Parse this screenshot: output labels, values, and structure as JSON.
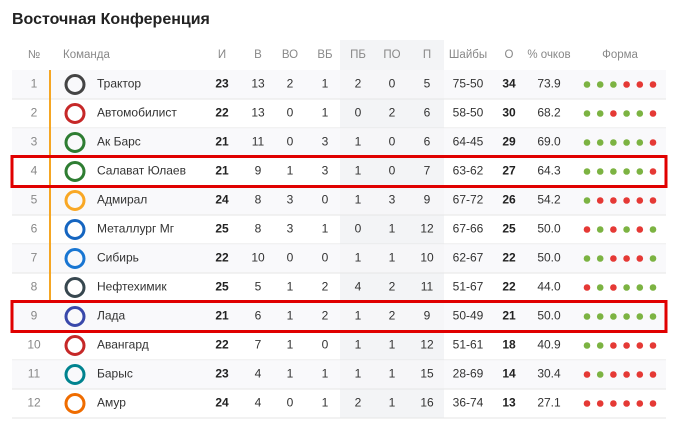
{
  "header": {
    "title": "Восточная Конференция"
  },
  "table": {
    "columns": [
      "№",
      "Команда",
      "И",
      "В",
      "ВО",
      "ВБ",
      "ПБ",
      "ПО",
      "П",
      "Шайбы",
      "О",
      "% очков",
      "Форма"
    ],
    "rows": [
      {
        "cells": [
          "1",
          "Трактор",
          "23",
          "13",
          "2",
          "1",
          "2",
          "0",
          "5",
          "75-50",
          "34",
          "73.9"
        ],
        "highlight": false,
        "form": [
          "#7cb342",
          "#7cb342",
          "#7cb342",
          "#e53935",
          "#e53935",
          "#e53935"
        ]
      },
      {
        "cells": [
          "2",
          "Автомобилист",
          "22",
          "13",
          "0",
          "1",
          "0",
          "2",
          "6",
          "58-50",
          "30",
          "68.2"
        ],
        "highlight": false,
        "form": [
          "#7cb342",
          "#7cb342",
          "#e53935",
          "#7cb342",
          "#7cb342",
          "#e53935"
        ]
      },
      {
        "cells": [
          "3",
          "Ак Барс",
          "21",
          "11",
          "0",
          "3",
          "1",
          "0",
          "6",
          "64-45",
          "29",
          "69.0"
        ],
        "highlight": false,
        "form": [
          "#7cb342",
          "#7cb342",
          "#7cb342",
          "#7cb342",
          "#7cb342",
          "#e53935"
        ]
      },
      {
        "cells": [
          "4",
          "Салават Юлаев",
          "21",
          "9",
          "1",
          "3",
          "1",
          "0",
          "7",
          "63-62",
          "27",
          "64.3"
        ],
        "highlight": true,
        "form": [
          "#7cb342",
          "#7cb342",
          "#7cb342",
          "#7cb342",
          "#7cb342",
          "#e53935"
        ]
      },
      {
        "cells": [
          "5",
          "Адмирал",
          "24",
          "8",
          "3",
          "0",
          "1",
          "3",
          "9",
          "67-72",
          "26",
          "54.2"
        ],
        "highlight": false,
        "form": [
          "#7cb342",
          "#e53935",
          "#e53935",
          "#e53935",
          "#e53935",
          "#e53935"
        ]
      },
      {
        "cells": [
          "6",
          "Металлург Мг",
          "25",
          "8",
          "3",
          "1",
          "0",
          "1",
          "12",
          "67-66",
          "25",
          "50.0"
        ],
        "highlight": false,
        "form": [
          "#e53935",
          "#7cb342",
          "#e53935",
          "#7cb342",
          "#e53935",
          "#7cb342"
        ]
      },
      {
        "cells": [
          "7",
          "Сибирь",
          "22",
          "10",
          "0",
          "0",
          "1",
          "1",
          "10",
          "62-67",
          "22",
          "50.0"
        ],
        "highlight": false,
        "form": [
          "#7cb342",
          "#7cb342",
          "#e53935",
          "#e53935",
          "#e53935",
          "#7cb342"
        ]
      },
      {
        "cells": [
          "8",
          "Нефтехимик",
          "25",
          "5",
          "1",
          "2",
          "4",
          "2",
          "11",
          "51-67",
          "22",
          "44.0"
        ],
        "highlight": false,
        "form": [
          "#e53935",
          "#7cb342",
          "#e53935",
          "#7cb342",
          "#7cb342",
          "#7cb342"
        ]
      },
      {
        "cells": [
          "9",
          "Лада",
          "21",
          "6",
          "1",
          "2",
          "1",
          "2",
          "9",
          "50-49",
          "21",
          "50.0"
        ],
        "highlight": true,
        "form": [
          "#7cb342",
          "#7cb342",
          "#7cb342",
          "#7cb342",
          "#7cb342",
          "#7cb342"
        ]
      },
      {
        "cells": [
          "10",
          "Авангард",
          "22",
          "7",
          "1",
          "0",
          "1",
          "1",
          "12",
          "51-61",
          "18",
          "40.9"
        ],
        "highlight": false,
        "form": [
          "#7cb342",
          "#7cb342",
          "#e53935",
          "#e53935",
          "#e53935",
          "#e53935"
        ]
      },
      {
        "cells": [
          "11",
          "Барыс",
          "23",
          "4",
          "1",
          "1",
          "1",
          "1",
          "15",
          "28-69",
          "14",
          "30.4"
        ],
        "highlight": false,
        "form": [
          "#e53935",
          "#7cb342",
          "#e53935",
          "#e53935",
          "#e53935",
          "#e53935"
        ]
      },
      {
        "cells": [
          "12",
          "Амур",
          "24",
          "4",
          "0",
          "1",
          "2",
          "1",
          "16",
          "36-74",
          "13",
          "27.1"
        ],
        "highlight": false,
        "form": [
          "#e53935",
          "#e53935",
          "#e53935",
          "#e53935",
          "#e53935",
          "#e53935"
        ]
      }
    ]
  }
}
